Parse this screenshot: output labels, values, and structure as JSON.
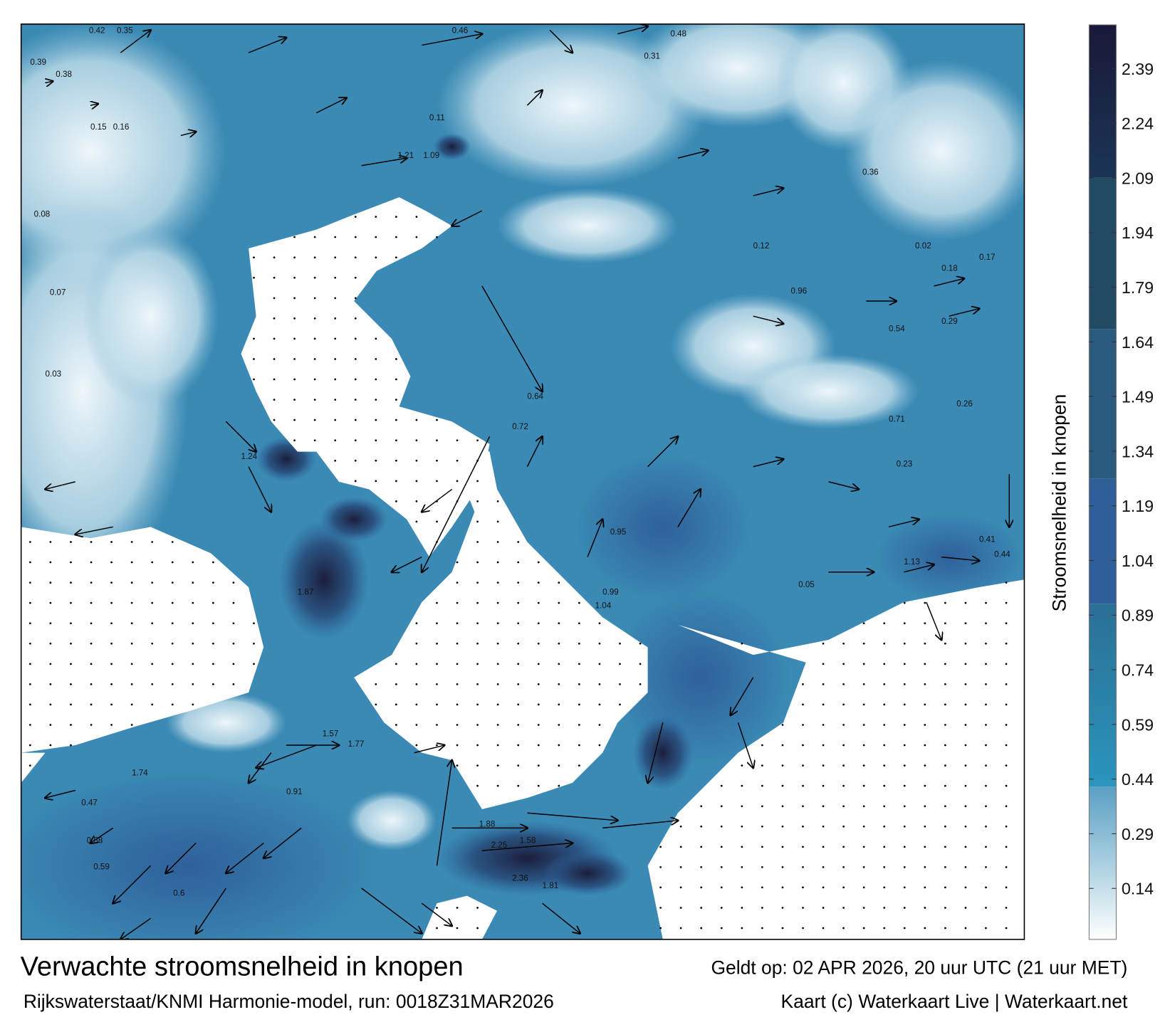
{
  "title": "Verwachte stroomsnelheid in knopen",
  "valid_time": "Geldt op: 02 APR 2026, 20 uur UTC (21 uur MET)",
  "model_run": "Rijkswaterstaat/KNMI Harmonie-model, run: 0018Z31MAR2026",
  "credit": "Kaart (c) Waterkaart Live | Waterkaart.net",
  "colorbar": {
    "label": "Stroomsnelheid in knopen",
    "ticks": [
      "2.39",
      "2.24",
      "2.09",
      "1.94",
      "1.79",
      "1.64",
      "1.49",
      "1.34",
      "1.19",
      "1.04",
      "0.89",
      "0.74",
      "0.59",
      "0.44",
      "0.29",
      "0.14"
    ],
    "range": [
      0,
      2.51
    ],
    "colors": {
      "min": "#ffffff",
      "low": "#5da6c8",
      "mid": "#2a8fb8",
      "high": "#2f609a",
      "max": "#1a1838"
    }
  },
  "map_labels": [
    "0.42",
    "0.35",
    "0.39",
    "0.38",
    "0.15",
    "0.16",
    "0.08",
    "0.07",
    "0.03",
    "0.46",
    "0.48",
    "0.31",
    "0.36",
    "0.12",
    "0.11",
    "1.09",
    "1.21",
    "0.64",
    "0.72",
    "0.95",
    "0.99",
    "1.04",
    "1.24",
    "1.87",
    "1.77",
    "1.57",
    "1.58",
    "2.36",
    "1.88",
    "2.25",
    "1.81",
    "1.74",
    "0.47",
    "0.58",
    "0.59",
    "0.6",
    "0.91",
    "1.13",
    "0.54",
    "0.41",
    "0.44",
    "0.96",
    "0.71",
    "0.29",
    "0.23",
    "0.18",
    "0.05",
    "0.02",
    "0.17",
    "0.26"
  ]
}
